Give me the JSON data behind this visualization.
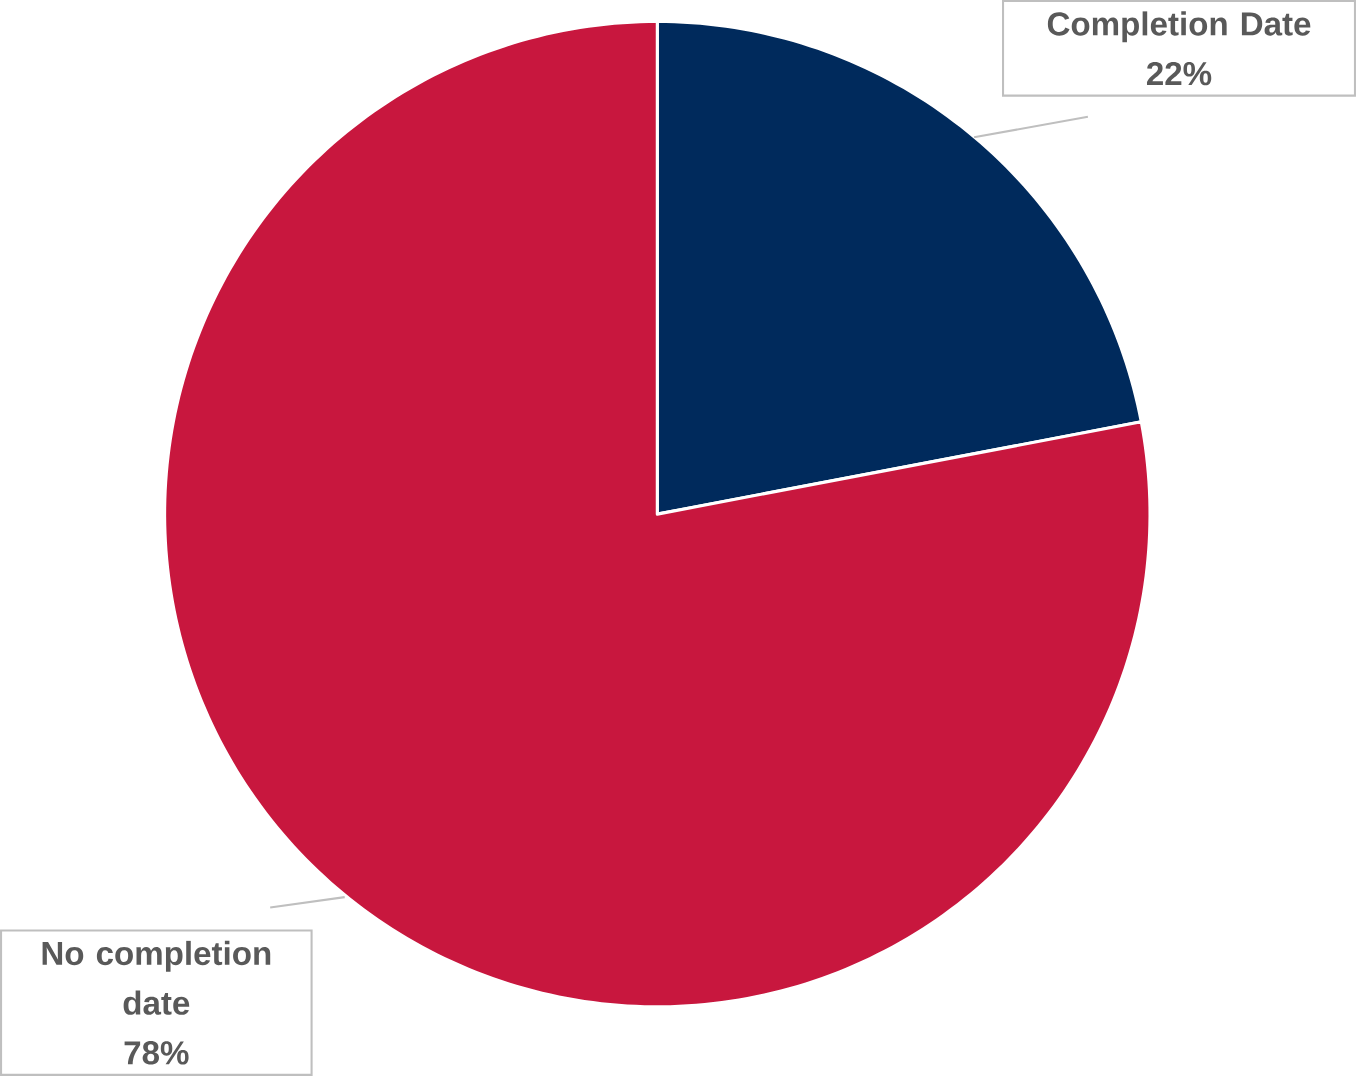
{
  "chart_data": {
    "type": "pie",
    "categories": [
      "Completion Date",
      "No completion date"
    ],
    "values": [
      22,
      78
    ],
    "value_labels": [
      "22%",
      "78%"
    ],
    "colors": [
      "#002a5c",
      "#c8173e"
    ]
  }
}
